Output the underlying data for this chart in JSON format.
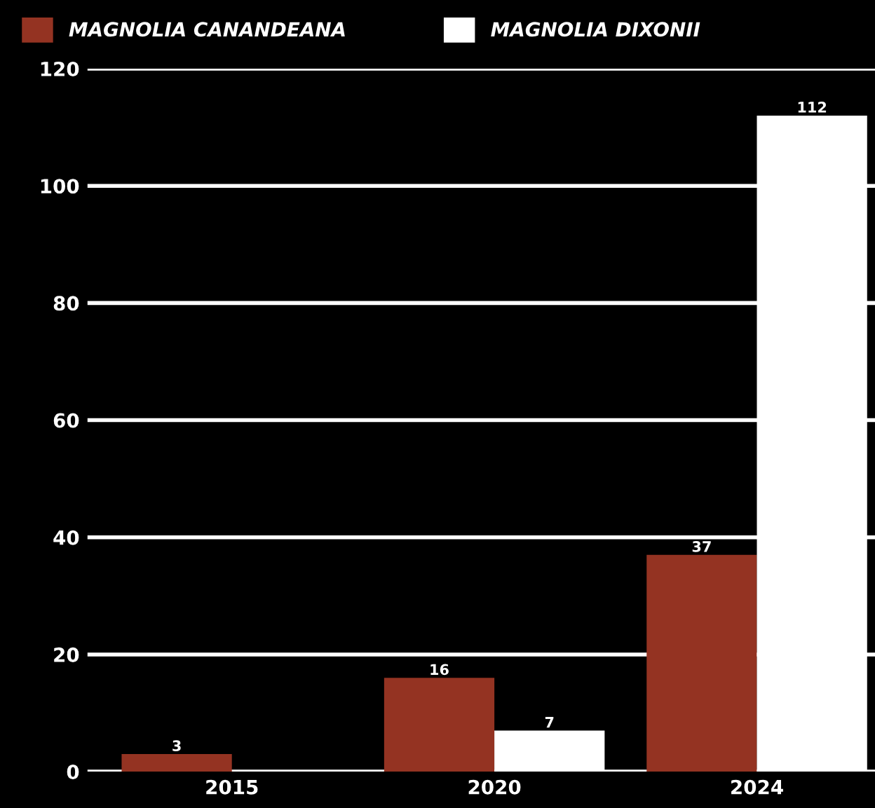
{
  "chart_data": {
    "type": "bar",
    "categories": [
      "2015",
      "2020",
      "2024"
    ],
    "series": [
      {
        "name": "MAGNOLIA CANANDEANA",
        "color": "#943322",
        "values": [
          3,
          16,
          37
        ]
      },
      {
        "name": "MAGNOLIA DIXONII",
        "color": "#ffffff",
        "values": [
          null,
          7,
          112
        ]
      }
    ],
    "ylim": [
      0,
      120
    ],
    "yticks": [
      0,
      20,
      40,
      60,
      80,
      100,
      120
    ],
    "grid": "y",
    "legend": "top left",
    "data_labels": true
  }
}
